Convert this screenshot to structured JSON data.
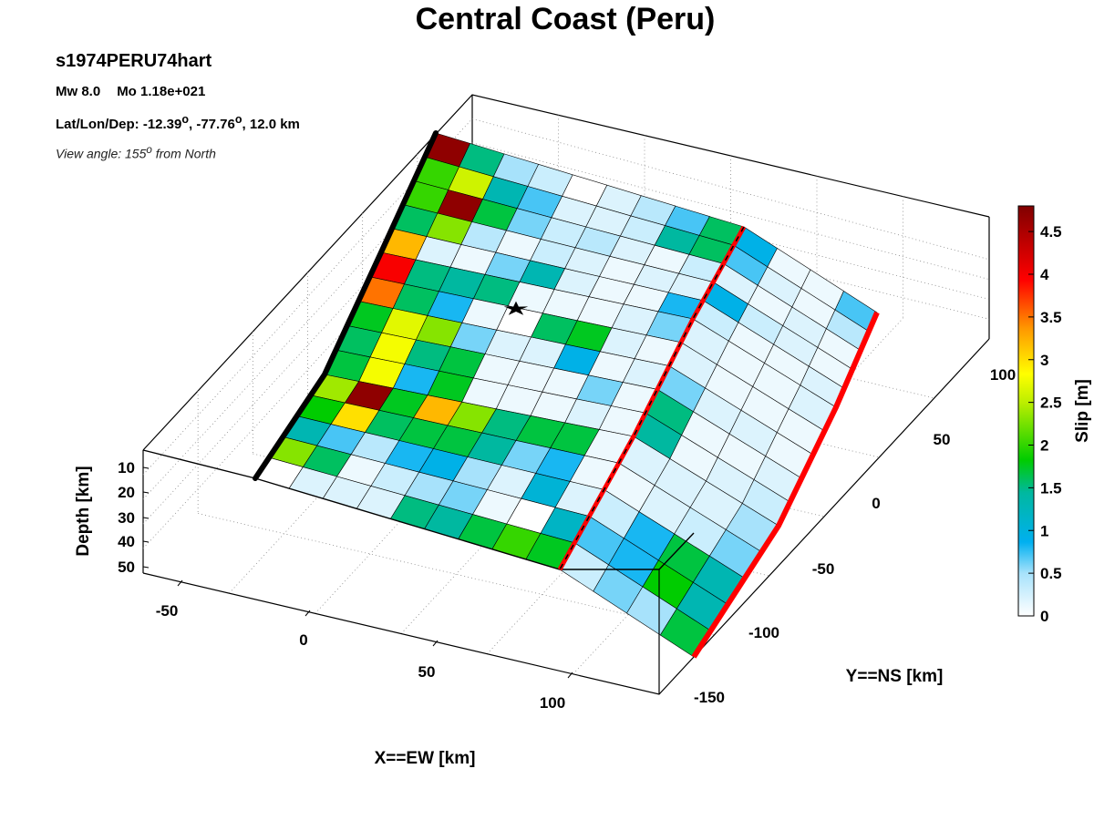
{
  "title": "Central Coast (Peru)",
  "event": {
    "name": "s1974PERU74hart",
    "mw": "Mw 8.0",
    "mo": "Mo 1.18e+021",
    "location_prefix": "Lat/Lon/Dep: -12.39",
    "location_lon": ", -77.76",
    "location_dep": ", 12.0 km",
    "degree": "o",
    "view_prefix": "View angle: 155",
    "view_suffix": " from North"
  },
  "chart_data": {
    "type": "heatmap",
    "subtype": "3d-fault-slip-surface",
    "xlabel": "X==EW [km]",
    "ylabel": "Y==NS [km]",
    "zlabel": "Depth [km]",
    "colorbar_label": "Slip [m]",
    "x_ticks": [
      "-50",
      "0",
      "50",
      "100"
    ],
    "y_ticks": [
      "-150",
      "-100",
      "-50",
      "0",
      "50",
      "100"
    ],
    "z_ticks": [
      "10",
      "20",
      "30",
      "40",
      "50"
    ],
    "colorbar_ticks": [
      "0",
      "0.5",
      "1",
      "1.5",
      "2",
      "2.5",
      "3",
      "3.5",
      "4",
      "4.5"
    ],
    "clim": [
      0,
      4.8
    ],
    "colormap": [
      "#ffffff",
      "#00b0f0",
      "#00cc00",
      "#ffff00",
      "#ff9900",
      "#ff0000",
      "#800000"
    ],
    "hypocenter_marker": "star",
    "grid": true,
    "slip_grid_m": [
      [
        4.7,
        1.4,
        0.5,
        0.3,
        0.0,
        0.2,
        0.4,
        0.7,
        1.5,
        0.9,
        0.1,
        0.1,
        0.7
      ],
      [
        2.0,
        2.6,
        1.2,
        0.7,
        0.2,
        0.2,
        0.3,
        1.3,
        1.5,
        0.7,
        0.2,
        0.1,
        0.4
      ],
      [
        2.0,
        4.7,
        1.6,
        0.6,
        0.3,
        0.4,
        0.2,
        0.1,
        0.3,
        0.2,
        0.1,
        0.2,
        0.1
      ],
      [
        1.5,
        2.3,
        0.4,
        0.1,
        0.3,
        0.2,
        0.1,
        0.2,
        0.2,
        0.9,
        0.3,
        0.2,
        0.1
      ],
      [
        3.2,
        0.2,
        0.1,
        0.6,
        1.2,
        0.2,
        0.1,
        0.1,
        0.8,
        0.3,
        0.1,
        0.1,
        0.2
      ],
      [
        4.0,
        1.4,
        1.3,
        1.4,
        0.1,
        0.1,
        0.1,
        0.2,
        0.6,
        0.2,
        0.1,
        0.1,
        0.2
      ],
      [
        3.5,
        1.5,
        0.8,
        0.1,
        0.0,
        1.5,
        1.7,
        0.2,
        0.1,
        0.2,
        0.1,
        0.1,
        0.1
      ],
      [
        1.7,
        2.7,
        2.3,
        0.6,
        0.2,
        0.2,
        0.9,
        0.1,
        0.2,
        0.6,
        0.2,
        0.2,
        0.1
      ],
      [
        1.5,
        2.8,
        1.4,
        1.6,
        0.1,
        0.1,
        0.1,
        0.6,
        0.1,
        1.4,
        0.1,
        0.1,
        0.2
      ],
      [
        1.6,
        2.8,
        0.8,
        1.7,
        0.1,
        0.1,
        0.1,
        0.2,
        0.1,
        1.3,
        0.1,
        0.2,
        0.3
      ],
      [
        2.4,
        4.7,
        1.7,
        3.2,
        2.3,
        1.4,
        1.6,
        1.6,
        0.1,
        0.2,
        0.2,
        0.2,
        0.5
      ],
      [
        1.8,
        3.0,
        1.5,
        1.6,
        1.6,
        1.3,
        0.6,
        0.8,
        0.1,
        0.1,
        0.2,
        0.3,
        0.6
      ],
      [
        1.2,
        0.7,
        0.4,
        0.8,
        0.9,
        0.5,
        0.2,
        1.0,
        0.2,
        0.3,
        0.8,
        1.6,
        1.2
      ],
      [
        2.3,
        1.5,
        0.1,
        0.3,
        0.5,
        0.6,
        0.1,
        0.0,
        1.1,
        0.7,
        0.8,
        1.8,
        1.2
      ],
      [
        null,
        0.2,
        0.2,
        0.2,
        1.4,
        1.3,
        1.6,
        2.0,
        1.7,
        0.3,
        0.6,
        0.5,
        1.6
      ]
    ],
    "fault_top_edges": [
      "black",
      "red",
      "red"
    ]
  }
}
